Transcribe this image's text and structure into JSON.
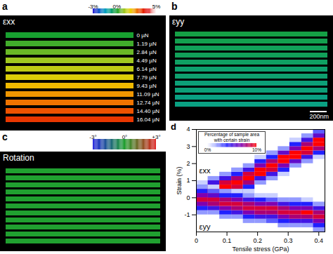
{
  "chart_data": [
    {
      "type": "strain_map",
      "panel": "a",
      "label": "εxx",
      "loads": [
        "0 µN",
        "1.19 µN",
        "2.84 µN",
        "4.49 µN",
        "6.14 µN",
        "7.79 µN",
        "9.43 µN",
        "11.09 µN",
        "12.74 µN",
        "14.40 µN",
        "16.04 µN"
      ],
      "values": [
        0,
        0.3,
        0.6,
        1.0,
        1.3,
        1.6,
        2.0,
        2.3,
        2.6,
        2.9,
        3.2
      ],
      "color_range": [
        -3,
        5
      ],
      "color_ticks": [
        {
          "value": -3,
          "label": "-3%"
        },
        {
          "value": 0,
          "label": "0%"
        },
        {
          "value": 5,
          "label": "5%"
        }
      ]
    },
    {
      "type": "strain_map",
      "panel": "b",
      "label": "εyy",
      "values": [
        -0.2,
        -0.3,
        -0.4,
        -0.4,
        -0.5,
        -0.6,
        -0.6,
        -0.7,
        -0.7,
        -0.8,
        -0.8
      ],
      "scale_bar": "200nm"
    },
    {
      "type": "strain_map",
      "panel": "c",
      "label": "Rotation",
      "values": [
        0,
        0,
        0,
        0,
        0,
        0,
        0,
        0,
        0,
        0,
        0
      ],
      "color_range": [
        -3,
        3
      ],
      "color_ticks": [
        {
          "value": -3,
          "label": "-3°"
        },
        {
          "value": 0,
          "label": "0°"
        },
        {
          "value": 3,
          "label": "+3°"
        }
      ]
    },
    {
      "type": "heatmap",
      "panel": "d",
      "xlabel": "Tensile stress (GPa)",
      "ylabel": "Strain (%)",
      "xlim": [
        0,
        0.42
      ],
      "xticks": [
        0,
        0.1,
        0.2,
        0.3,
        0.4
      ],
      "ylim": [
        -2,
        4
      ],
      "yticks": [
        -1,
        0,
        1,
        2,
        3,
        4
      ],
      "stress_bins": [
        0,
        0.038,
        0.076,
        0.115,
        0.153,
        0.191,
        0.229,
        0.267,
        0.305,
        0.344,
        0.382,
        0.42
      ],
      "strain_bin_width": 0.25,
      "series": [
        {
          "name": "εxx",
          "cells": [
            {
              "strain_start": -0.75,
              "percent": [
                2,
                5,
                9,
                11,
                8,
                4,
                1
              ]
            },
            {
              "strain_start": -0.5,
              "percent": [
                2,
                5,
                8,
                11,
                9,
                5,
                2
              ]
            },
            {
              "strain_start": -0.25,
              "percent": [
                1,
                4,
                8,
                10,
                9,
                5,
                2
              ]
            },
            {
              "strain_start": 0,
              "percent": [
                2,
                5,
                9,
                11,
                8,
                4,
                2
              ]
            },
            {
              "strain_start": 0.25,
              "percent": [
                1,
                4,
                8,
                11,
                9,
                5,
                2
              ]
            },
            {
              "strain_start": 0.75,
              "percent": [
                2,
                5,
                10,
                11,
                7,
                4,
                1
              ]
            },
            {
              "strain_start": 1.0,
              "percent": [
                2,
                5,
                9,
                11,
                8,
                4,
                2
              ]
            },
            {
              "strain_start": 1.25,
              "percent": [
                1,
                4,
                7,
                10,
                10,
                6,
                2
              ]
            },
            {
              "strain_start": 1.75,
              "percent": [
                2,
                6,
                10,
                11,
                7,
                4,
                1
              ]
            },
            {
              "strain_start": 2.0,
              "percent": [
                2,
                5,
                9,
                11,
                8,
                5,
                2
              ]
            },
            {
              "strain_start": 2.25,
              "percent": [
                1,
                4,
                8,
                10,
                10,
                6,
                3
              ]
            }
          ]
        },
        {
          "name": "εyy",
          "cells": [
            {
              "strain_start": -1.0,
              "percent": [
                2,
                4,
                7,
                9,
                7,
                4,
                2
              ]
            },
            {
              "strain_start": -1.0,
              "percent": [
                2,
                5,
                8,
                9,
                6,
                3,
                1
              ]
            },
            {
              "strain_start": -1.25,
              "percent": [
                2,
                4,
                7,
                9,
                8,
                4,
                2
              ]
            },
            {
              "strain_start": -1.25,
              "percent": [
                2,
                5,
                8,
                9,
                7,
                4,
                1
              ]
            },
            {
              "strain_start": -1.5,
              "percent": [
                2,
                4,
                7,
                9,
                8,
                5,
                2
              ]
            },
            {
              "strain_start": -1.5,
              "percent": [
                2,
                5,
                8,
                9,
                7,
                4,
                1
              ]
            },
            {
              "strain_start": -1.5,
              "percent": [
                3,
                5,
                8,
                9,
                7,
                3,
                1
              ]
            },
            {
              "strain_start": -1.75,
              "percent": [
                2,
                4,
                7,
                9,
                8,
                5,
                2
              ]
            },
            {
              "strain_start": -1.75,
              "percent": [
                2,
                5,
                8,
                9,
                7,
                4,
                2
              ]
            },
            {
              "strain_start": -1.75,
              "percent": [
                2,
                5,
                8,
                10,
                7,
                4,
                1
              ]
            },
            {
              "strain_start": -2.0,
              "percent": [
                2,
                4,
                7,
                9,
                8,
                5,
                2
              ]
            }
          ]
        }
      ],
      "color_label": "Percentage of sample area with certain strain",
      "color_range": [
        0,
        10
      ],
      "color_ticks": [
        {
          "value": 0,
          "label": "0%"
        },
        {
          "value": 10,
          "label": "10%"
        }
      ],
      "legend": "top-left"
    }
  ]
}
